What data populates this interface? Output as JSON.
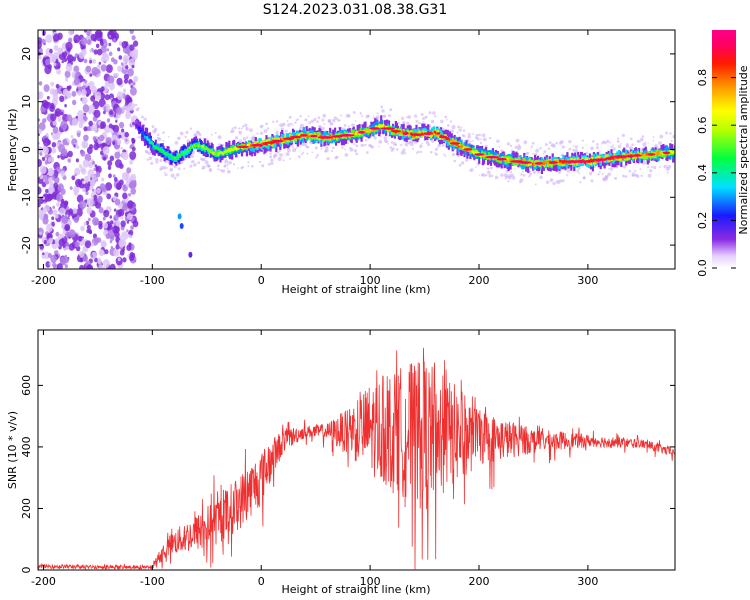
{
  "figure": {
    "title": "S124.2023.031.08.38.G31"
  },
  "chart_data": [
    {
      "type": "heatmap",
      "xlabel": "Height of straight line (km)",
      "ylabel": "Frequency (Hz)",
      "xlim": [
        -205,
        380
      ],
      "ylim": [
        -25,
        25
      ],
      "xticks": [
        -200,
        -100,
        0,
        100,
        200,
        300
      ],
      "yticks": [
        -20,
        -10,
        0,
        10,
        20
      ],
      "grid": false,
      "colorbar": {
        "label": "Normalized spectral amplitude",
        "range": [
          0,
          1
        ],
        "ticks": [
          0.0,
          0.2,
          0.4,
          0.6,
          0.8
        ],
        "tick_labels": [
          "0.0",
          "0.2",
          "0.4",
          "0.6",
          "0.8"
        ],
        "colormap": "rainbow (white-purple-blue-cyan-green-yellow-red-magenta)"
      },
      "noise_region": {
        "x_range": [
          -205,
          -115
        ],
        "amplitude": 0.15
      },
      "ridge": {
        "x": [
          -115,
          -100,
          -80,
          -60,
          -40,
          -20,
          0,
          20,
          40,
          60,
          80,
          100,
          110,
          120,
          140,
          160,
          180,
          200,
          220,
          250,
          280,
          300,
          330,
          360,
          380
        ],
        "frequency_hz": [
          5,
          1,
          -2,
          1,
          -1,
          0.5,
          1,
          2,
          3,
          2.5,
          3,
          4,
          5,
          4,
          3,
          3.5,
          1,
          -1,
          -2,
          -3,
          -2.5,
          -2.5,
          -1.5,
          -1,
          -0.5
        ],
        "peak_amplitude": [
          0.15,
          0.45,
          0.5,
          0.55,
          0.6,
          0.7,
          0.9,
          0.85,
          0.8,
          0.8,
          0.75,
          0.75,
          0.7,
          0.8,
          0.85,
          0.9,
          0.8,
          0.7,
          0.75,
          0.8,
          0.85,
          0.9,
          0.85,
          0.8,
          0.7
        ]
      },
      "stray_points": [
        {
          "x": -75,
          "frequency_hz": -14,
          "amplitude": 0.3
        },
        {
          "x": -73,
          "frequency_hz": -16,
          "amplitude": 0.25
        },
        {
          "x": -65,
          "frequency_hz": -22,
          "amplitude": 0.15
        }
      ]
    },
    {
      "type": "line",
      "xlabel": "Height of straight line (km)",
      "ylabel": "SNR (10 * v/v)",
      "xlim": [
        -205,
        380
      ],
      "ylim": [
        0,
        780
      ],
      "xticks": [
        -200,
        -100,
        0,
        100,
        200,
        300
      ],
      "yticks": [
        0,
        200,
        400,
        600
      ],
      "grid": false,
      "color": "#ef3030",
      "series": [
        {
          "envelope": {
            "x": [
              -205,
              -150,
              -100,
              -90,
              -80,
              -60,
              -40,
              -20,
              0,
              20,
              40,
              60,
              80,
              100,
              120,
              140,
              150,
              160,
              180,
              200,
              250,
              300,
              350,
              380
            ],
            "mean": [
              12,
              10,
              8,
              60,
              90,
              120,
              160,
              220,
              300,
              420,
              450,
              450,
              450,
              460,
              450,
              450,
              440,
              440,
              440,
              430,
              420,
              420,
              410,
              380
            ],
            "spread": [
              6,
              6,
              6,
              30,
              40,
              60,
              80,
              90,
              90,
              40,
              20,
              25,
              80,
              150,
              200,
              230,
              260,
              210,
              160,
              90,
              40,
              20,
              15,
              15
            ],
            "max": [
              20,
              18,
              18,
              120,
              150,
              200,
              330,
              450,
              430,
              480,
              490,
              500,
              520,
              670,
              710,
              750,
              760,
              720,
              650,
              560,
              480,
              460,
              440,
              420
            ]
          }
        }
      ]
    }
  ]
}
